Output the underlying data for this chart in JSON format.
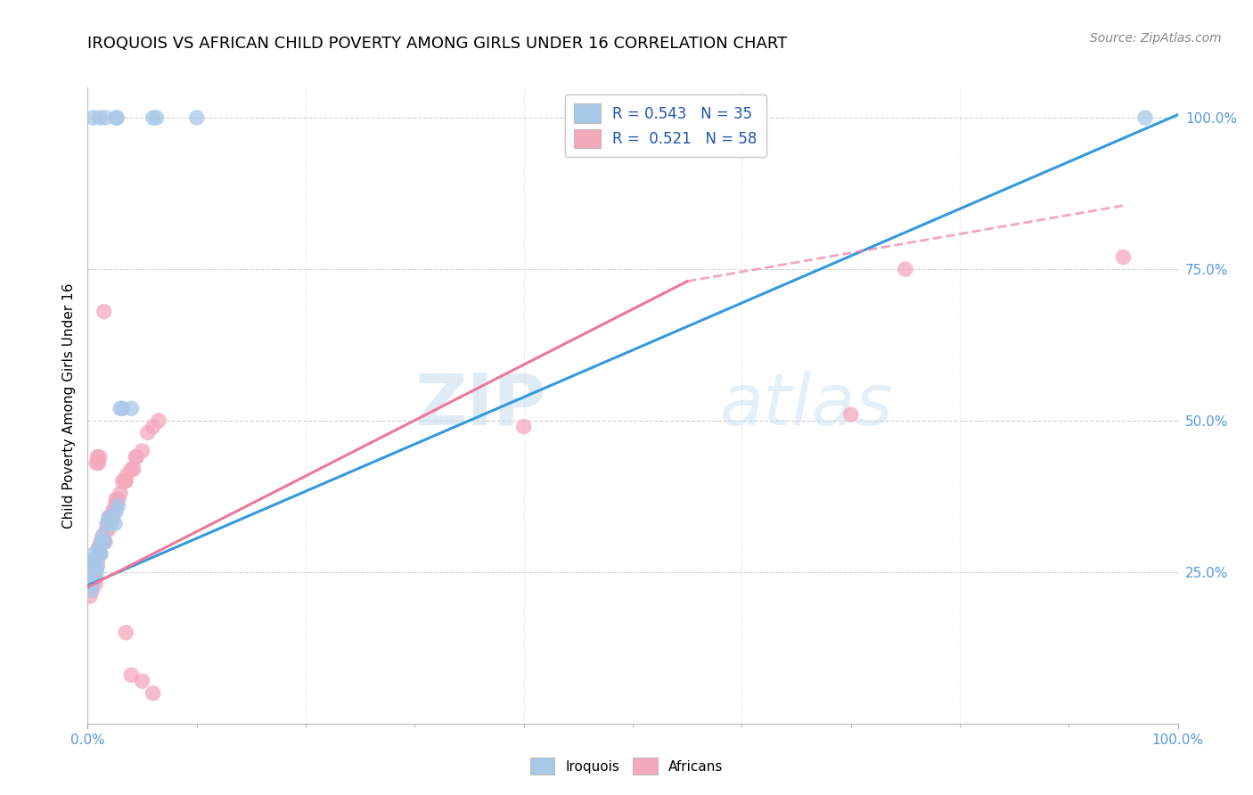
{
  "title": "IROQUOIS VS AFRICAN CHILD POVERTY AMONG GIRLS UNDER 16 CORRELATION CHART",
  "source": "Source: ZipAtlas.com",
  "ylabel": "Child Poverty Among Girls Under 16",
  "xlim": [
    0,
    1
  ],
  "ylim": [
    0,
    1.05
  ],
  "ytick_positions": [
    0.25,
    0.5,
    0.75,
    1.0
  ],
  "watermark_zip": "ZIP",
  "watermark_atlas": "atlas",
  "iroquois_color": "#a8c8e8",
  "africans_color": "#f4a8bc",
  "iroquois_line_color": "#3399dd",
  "africans_line_color": "#ee7799",
  "tick_label_color": "#5599dd",
  "background_color": "#ffffff",
  "grid_color": "#cccccc",
  "title_fontsize": 13,
  "axis_label_fontsize": 11,
  "source_fontsize": 10,
  "iroquois_scatter_x": [
    0.005,
    0.011,
    0.016,
    0.026,
    0.027,
    0.06,
    0.063,
    0.001,
    0.002,
    0.003,
    0.004,
    0.005,
    0.006,
    0.006,
    0.007,
    0.008,
    0.009,
    0.01,
    0.011,
    0.012,
    0.013,
    0.014,
    0.015,
    0.018,
    0.019,
    0.021,
    0.023,
    0.025,
    0.026,
    0.028,
    0.03,
    0.032,
    0.04,
    0.97,
    0.1
  ],
  "iroquois_scatter_y": [
    1.0,
    1.0,
    1.0,
    1.0,
    1.0,
    1.0,
    1.0,
    0.24,
    0.23,
    0.22,
    0.23,
    0.27,
    0.28,
    0.26,
    0.27,
    0.25,
    0.26,
    0.29,
    0.28,
    0.28,
    0.3,
    0.31,
    0.3,
    0.33,
    0.34,
    0.33,
    0.34,
    0.33,
    0.35,
    0.36,
    0.52,
    0.52,
    0.52,
    1.0,
    1.0
  ],
  "africans_scatter_x": [
    0.001,
    0.002,
    0.003,
    0.004,
    0.005,
    0.005,
    0.006,
    0.006,
    0.007,
    0.007,
    0.008,
    0.009,
    0.01,
    0.01,
    0.011,
    0.012,
    0.013,
    0.014,
    0.015,
    0.016,
    0.017,
    0.018,
    0.019,
    0.02,
    0.021,
    0.022,
    0.023,
    0.024,
    0.025,
    0.026,
    0.027,
    0.028,
    0.03,
    0.032,
    0.034,
    0.035,
    0.036,
    0.04,
    0.042,
    0.044,
    0.045,
    0.05,
    0.055,
    0.06,
    0.065,
    0.008,
    0.009,
    0.01,
    0.011,
    0.035,
    0.04,
    0.05,
    0.06,
    0.4,
    0.7,
    0.75,
    0.95,
    0.015
  ],
  "africans_scatter_y": [
    0.23,
    0.21,
    0.23,
    0.22,
    0.27,
    0.25,
    0.26,
    0.24,
    0.24,
    0.23,
    0.26,
    0.27,
    0.29,
    0.28,
    0.28,
    0.3,
    0.3,
    0.31,
    0.3,
    0.3,
    0.32,
    0.33,
    0.32,
    0.34,
    0.34,
    0.34,
    0.35,
    0.35,
    0.36,
    0.37,
    0.37,
    0.37,
    0.38,
    0.4,
    0.4,
    0.4,
    0.41,
    0.42,
    0.42,
    0.44,
    0.44,
    0.45,
    0.48,
    0.49,
    0.5,
    0.43,
    0.44,
    0.43,
    0.44,
    0.15,
    0.08,
    0.07,
    0.05,
    0.49,
    0.51,
    0.75,
    0.77,
    0.68
  ],
  "iroquois_line": {
    "x0": 0.0,
    "y0": 0.228,
    "x1": 1.0,
    "y1": 1.005
  },
  "africans_line_solid": {
    "x0": 0.0,
    "y0": 0.225,
    "x1": 0.55,
    "y1": 0.73
  },
  "africans_line_dash": {
    "x0": 0.55,
    "y0": 0.73,
    "x1": 0.95,
    "y1": 0.855
  }
}
